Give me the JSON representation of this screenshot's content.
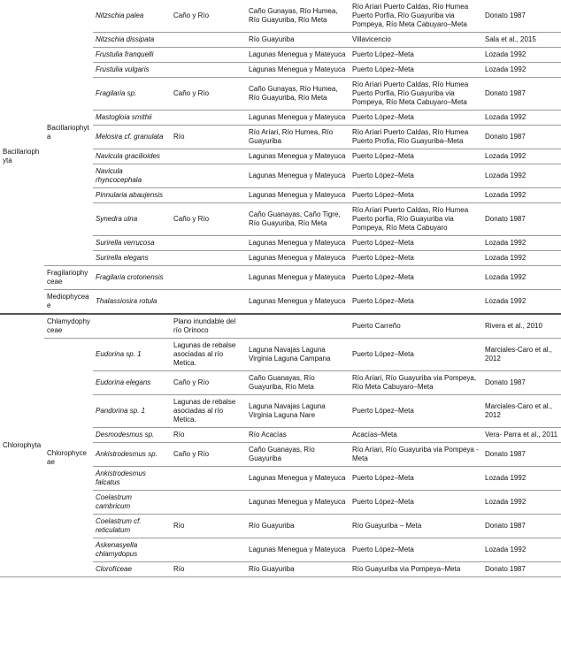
{
  "groups": [
    {
      "phylum": "Bacillariophyta",
      "classes": [
        {
          "name": "Bacillariophyta",
          "rows": [
            [
              "Nitzschia palea",
              "Caño y Río",
              "Caño Gunayas, Río Humea, Río Guayuriba, Río Meta",
              "Río Aríari Puerto Caldas, Río Humea Puerto Porfía, Río Guayuriba via Pompeya, Río Meta Cabuyaro–Meta",
              "Donato 1987"
            ],
            [
              "Nitzschia dissipata",
              null,
              "Río Guayuriba",
              "Villavicencio",
              "Sala et al., 2015"
            ],
            [
              "Frustulia franquelli",
              null,
              "Lagunas Menegua y Mateyuca",
              "Puerto López–Meta",
              "Lozada 1992"
            ],
            [
              "Frustulia vulgaris",
              null,
              "Lagunas Menegua y Mateyuca",
              "Puerto López–Meta",
              "Lozada 1992"
            ],
            [
              "Fragilaria sp.",
              "Caño y Río",
              "Caño Gunayas, Río Humea, Río Guayuriba, Río Meta",
              "Río Aríari Puerto Caldas, Río Humea Puerto Porfía, Río Guayuriba via Pompeya, Río Meta Cabuyaro–Meta",
              "Donato 1987"
            ],
            [
              "Mastogloia smithii",
              null,
              "Lagunas Menegua y Mateyuca",
              "Puerto López–Meta",
              "Lozada 1992"
            ],
            [
              "Melosira cf. granulata",
              "Río",
              "Río Aríari, Río Humea, Río Guayuriba",
              "Río Aríari Puerto Caldas, Río Humea Puerto Profía, Río Guayuriba–Meta",
              "Donato 1987"
            ],
            [
              "Navicula gracilioides",
              null,
              "Lagunas Menegua y Mateyuca",
              "Puerto López–Meta",
              "Lozada 1992"
            ],
            [
              "Navicula rhyncocephala",
              null,
              "Lagunas Menegua y Mateyuca",
              "Puerto López–Meta",
              "Lozada 1992"
            ],
            [
              "Pinnularia abaujensis",
              null,
              "Lagunas Menegua y Mateyuca",
              "Puerto López–Meta",
              "Lozada 1992"
            ],
            [
              "Synedra ulna",
              "Caño y Río",
              "Caño Guanayas, Caño Tigre, Río Guayuriba, Río Meta",
              "Río Aríari Puerto Caldas, Río Humea Puerto porfía, Río Guayuriba via Pompeya, Río Meta Cabuyaro",
              "Donato 1987"
            ],
            [
              "Surirella verrucosa",
              null,
              "Lagunas Menegua y Mateyuca",
              "Puerto López–Meta",
              "Lozada 1992"
            ],
            [
              "Surirella elegans",
              null,
              "Lagunas Menegua y Mateyuca",
              "Puerto López–Meta",
              "Lozada 1992"
            ]
          ]
        },
        {
          "name": "Fragilariophyceae",
          "rows": [
            [
              "Fragilaria crotonensis",
              null,
              "Lagunas Menegua y Mateyuca",
              "Puerto López–Meta",
              "Lozada 1992"
            ]
          ]
        },
        {
          "name": "Mediophyceae",
          "rows": [
            [
              "Thalassiosira rotula",
              null,
              "Lagunas Menegua y Mateyuca",
              "Puerto López–Meta",
              "Lozada 1992"
            ]
          ]
        }
      ]
    },
    {
      "phylum": "Chlorophyta",
      "classes": [
        {
          "name": "Chlamydophyceae",
          "rows": [
            [
              null,
              "Plano inundable del río Orinoco",
              null,
              "Puerto Carreño",
              "Rivera et al., 2010"
            ]
          ]
        },
        {
          "name": "Chlorophyceae",
          "rows": [
            [
              "Eudorina sp. 1",
              "Lagunas de rebalse asociadas al río Metica.",
              "Laguna Navajas Laguna Virginia Laguna Campana",
              "Puerto López–Meta",
              "Marciales-Caro et al., 2012"
            ],
            [
              "Eudorina elegans",
              "Caño y Río",
              "Caño Guanayas, Río Guayuriba, Río Meta",
              "Río Aríari, Río Guayuriba via Pompeya, Río Meta Cabuyaro–Meta",
              "Donato 1987"
            ],
            [
              "Pandorina sp. 1",
              "Lagunas de rebalse asociadas al río Metica.",
              "Laguna Navajas Laguna Virginia Laguna Nare",
              "Puerto López–Meta",
              "Marciales-Caro et al., 2012"
            ],
            [
              "Desmodesmus sp.",
              "Río",
              "Río Acacías",
              "Acacías–Meta",
              "Vera- Parra et al., 2011"
            ],
            [
              "Ankistrodesmus sp.",
              "Caño y Río",
              "Caño Guanayas, Río Guayuriba",
              "Río Aríari, Río Guayuriba via Pompeya -Meta",
              "Donato 1987"
            ],
            [
              "Ankistrodesmus falcatus",
              null,
              "Lagunas Menegua y Mateyuca",
              "Puerto López–Meta",
              "Lozada 1992"
            ],
            [
              "Coelastrum cambricum",
              null,
              "Lagunas Menegua y Mateyuca",
              "Puerto López–Meta",
              "Lozada 1992"
            ],
            [
              "Coelastrum cf. reticulatum",
              "Río",
              "Río Guayuriba",
              "Río Guayuriba – Meta",
              "Donato 1987"
            ],
            [
              "Askenasyella chlamydopus",
              null,
              "Lagunas Menegua y Mateyuca",
              "Puerto López–Meta",
              "Lozada 1992"
            ],
            [
              "Clorofíceae",
              "Río",
              "Río Guayuriba",
              "Río Guayuriba via Pompeya–Meta",
              "Donato 1987"
            ]
          ]
        }
      ]
    }
  ]
}
